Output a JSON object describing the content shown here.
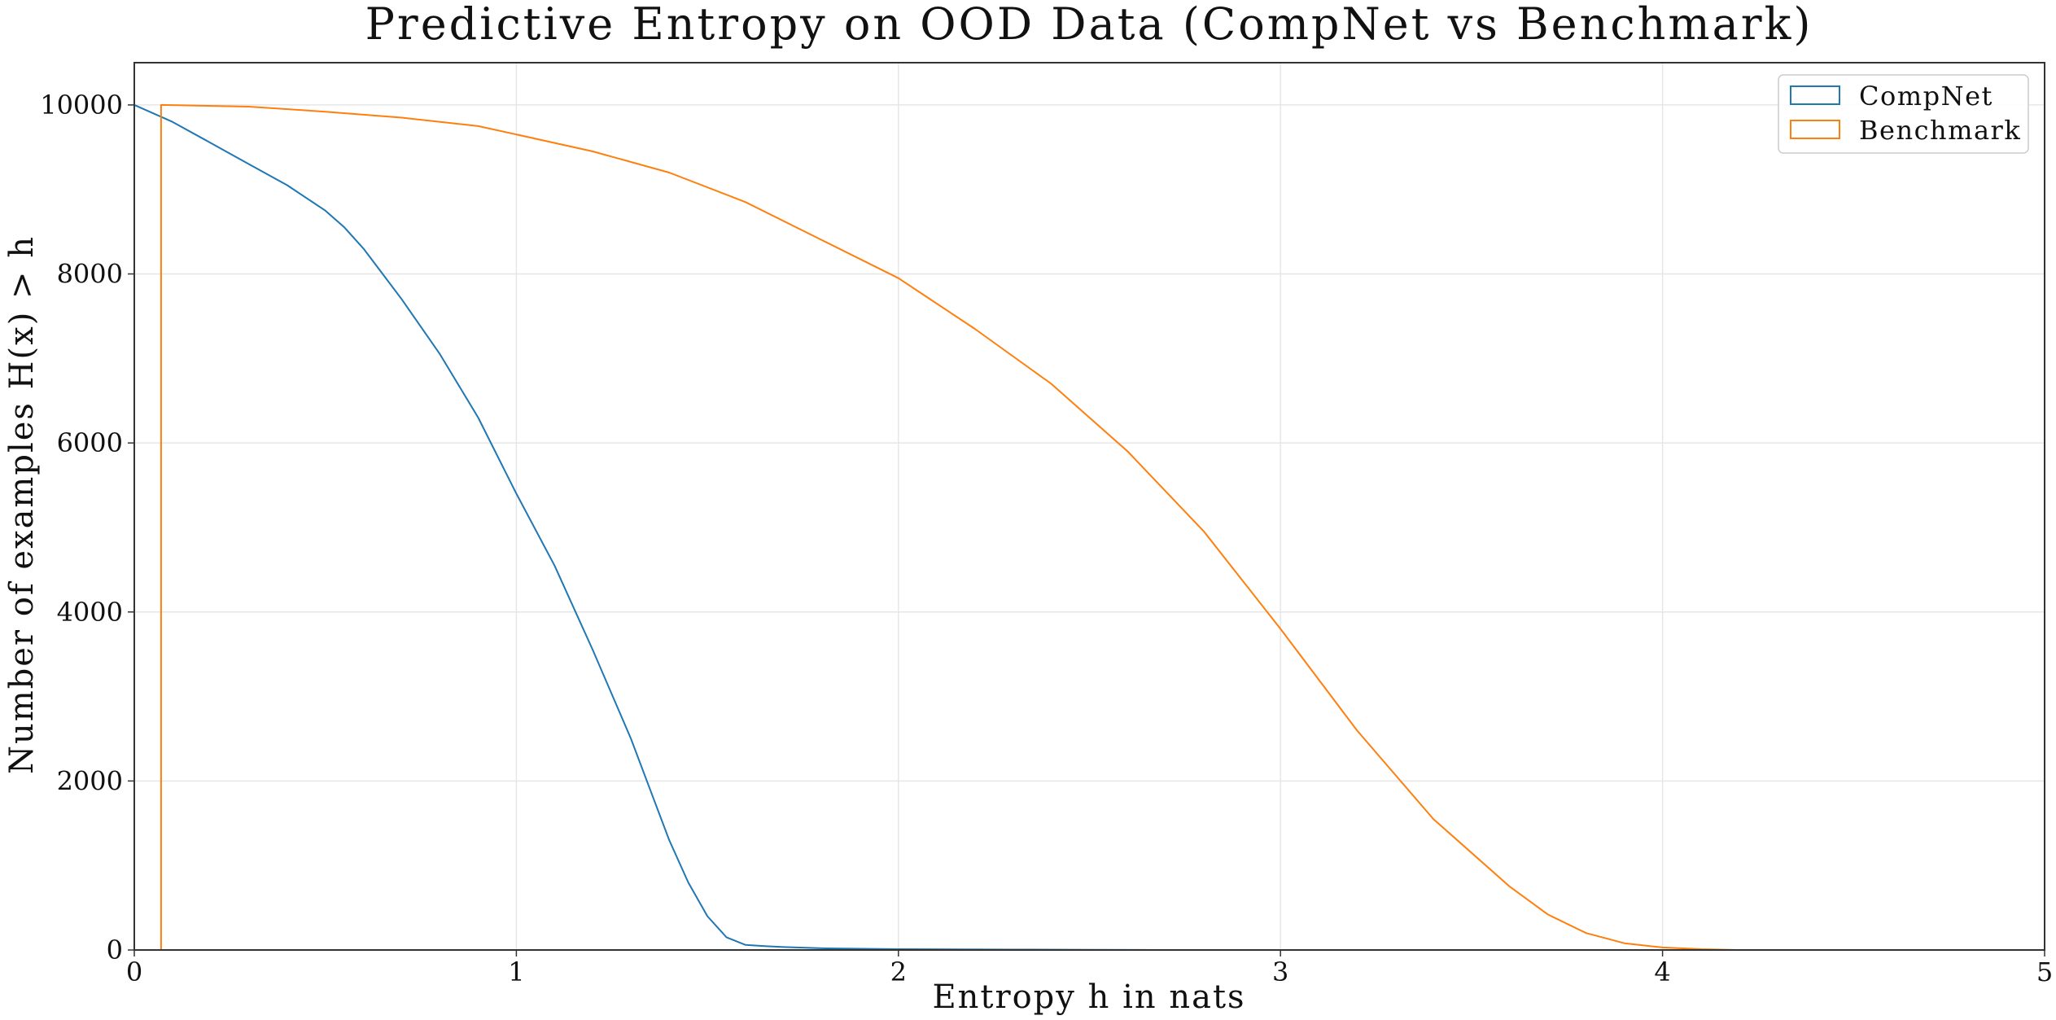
{
  "chart_data": {
    "type": "line",
    "title": "Predictive Entropy on OOD Data (CompNet vs Benchmark)",
    "xlabel": "Entropy h in nats",
    "ylabel": "Number of examples H(x) > h",
    "xlim": [
      0,
      5
    ],
    "ylim": [
      0,
      10500
    ],
    "xticks": [
      "0",
      "1",
      "2",
      "3",
      "4",
      "5"
    ],
    "yticks": [
      "0",
      "2000",
      "4000",
      "6000",
      "8000",
      "10000"
    ],
    "grid": true,
    "legend_position": "top-right",
    "series": [
      {
        "name": "CompNet",
        "color": "#1f77b4",
        "x": [
          0,
          0.05,
          0.1,
          0.2,
          0.3,
          0.4,
          0.5,
          0.55,
          0.6,
          0.65,
          0.7,
          0.8,
          0.9,
          1.0,
          1.1,
          1.2,
          1.3,
          1.35,
          1.4,
          1.45,
          1.5,
          1.55,
          1.6,
          1.65,
          1.7,
          1.8,
          2.0,
          2.3,
          2.5,
          2.69
        ],
        "y": [
          10000,
          9900,
          9800,
          9550,
          9300,
          9050,
          8750,
          8550,
          8300,
          8000,
          7700,
          7050,
          6300,
          5400,
          4550,
          3550,
          2500,
          1900,
          1300,
          800,
          400,
          150,
          60,
          45,
          35,
          20,
          10,
          5,
          3,
          0
        ]
      },
      {
        "name": "Benchmark",
        "color": "#ff7f0e",
        "x": [
          0.07,
          0.07,
          0.3,
          0.5,
          0.7,
          0.9,
          1.0,
          1.2,
          1.4,
          1.6,
          1.8,
          2.0,
          2.2,
          2.4,
          2.6,
          2.8,
          3.0,
          3.2,
          3.4,
          3.6,
          3.7,
          3.8,
          3.9,
          4.0,
          4.1,
          4.2
        ],
        "y": [
          0,
          10000,
          9980,
          9920,
          9850,
          9750,
          9650,
          9450,
          9200,
          8850,
          8400,
          7950,
          7350,
          6700,
          5900,
          4950,
          3800,
          2600,
          1550,
          750,
          420,
          200,
          80,
          30,
          10,
          0
        ]
      }
    ]
  }
}
